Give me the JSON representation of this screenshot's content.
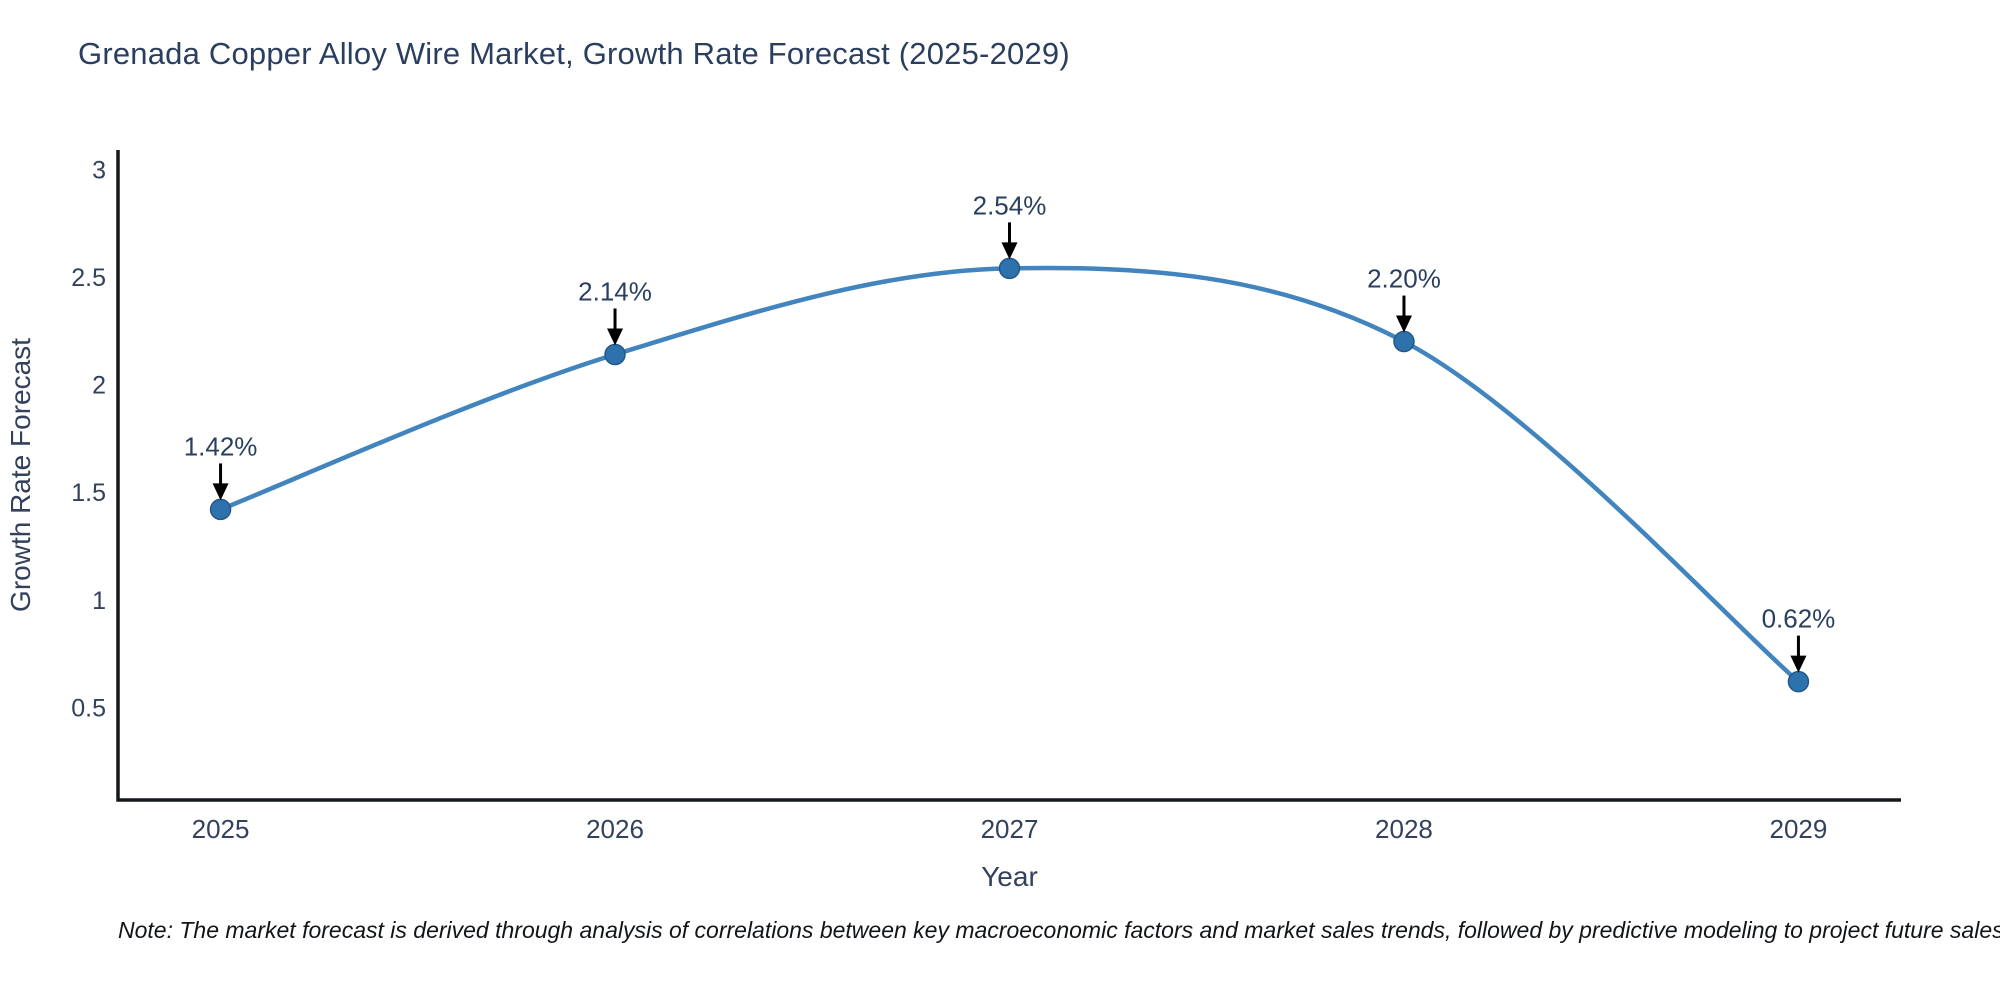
{
  "title": "Grenada Copper Alloy Wire Market, Growth Rate Forecast (2025-2029)",
  "note": "Note: The market forecast is derived through analysis of correlations between key macroeconomic factors and market sales trends, followed by predictive modeling to project future sales",
  "chart_data": {
    "type": "line",
    "title": "Grenada Copper Alloy Wire Market, Growth Rate Forecast (2025-2029)",
    "x": [
      2025,
      2026,
      2027,
      2028,
      2029
    ],
    "y": [
      1.42,
      2.14,
      2.54,
      2.2,
      0.62
    ],
    "point_labels": [
      "1.42%",
      "2.14%",
      "2.54%",
      "2.20%",
      "0.62%"
    ],
    "xlabel": "Year",
    "ylabel": "Growth Rate Forecast",
    "yticks": [
      0.5,
      1,
      1.5,
      2,
      2.5,
      3
    ],
    "xlim": [
      2024.74,
      2029.26
    ],
    "ylim": [
      0.07,
      3.09
    ],
    "grid": false,
    "legend": false,
    "line_shape": "spline",
    "colors": {
      "line": "#4184be",
      "marker": "#2e72ad",
      "marker_edge": "#24588a",
      "axis": "#14181d",
      "tick_text": "#33415c",
      "annotation_text": "#2a3f5f",
      "arrow": "#000000"
    }
  }
}
